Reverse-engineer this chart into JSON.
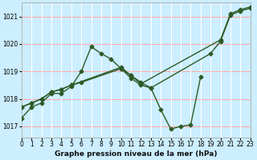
{
  "title": "Graphe pression niveau de la mer (hPa)",
  "bg_color": "#cceeff",
  "grid_color_h": "#ffaaaa",
  "grid_color_v": "#ffffff",
  "line_color": "#2d5a27",
  "series1_x": [
    0,
    1,
    2,
    3,
    4,
    5,
    6,
    7,
    8,
    9,
    10,
    11,
    12,
    13,
    14,
    15,
    16,
    17,
    18
  ],
  "series1_y": [
    1017.3,
    1017.7,
    1017.85,
    1018.2,
    1018.2,
    1018.45,
    1019.0,
    1019.9,
    1019.65,
    1019.45,
    1019.1,
    1018.75,
    1018.5,
    1018.4,
    1017.6,
    1016.9,
    1017.0,
    1017.05,
    1018.8
  ],
  "series2_x": [
    0,
    1,
    2,
    3,
    4,
    5,
    6,
    10,
    11,
    12,
    13,
    19,
    20,
    21,
    22,
    23
  ],
  "series2_y": [
    1017.7,
    1017.85,
    1018.0,
    1018.25,
    1018.35,
    1018.5,
    1018.6,
    1019.1,
    1018.85,
    1018.6,
    1018.4,
    1019.65,
    1020.1,
    1021.05,
    1021.2,
    1021.3
  ],
  "series3_x": [
    0,
    1,
    2,
    3,
    4,
    5,
    10,
    11,
    12,
    20,
    21,
    22,
    23
  ],
  "series3_y": [
    1017.7,
    1017.85,
    1018.0,
    1018.25,
    1018.35,
    1018.5,
    1019.15,
    1018.85,
    1018.55,
    1020.15,
    1021.1,
    1021.25,
    1021.35
  ],
  "xlim": [
    0,
    23
  ],
  "ylim": [
    1016.6,
    1021.5
  ],
  "yticks": [
    1017,
    1018,
    1019,
    1020,
    1021
  ],
  "ytick_labels": [
    "1017",
    "1018",
    "1019",
    "1020",
    "1021"
  ],
  "xticks": [
    0,
    1,
    2,
    3,
    4,
    5,
    6,
    7,
    8,
    9,
    10,
    11,
    12,
    13,
    14,
    15,
    16,
    17,
    18,
    19,
    20,
    21,
    22,
    23
  ],
  "marker": "D",
  "markersize": 2.5,
  "linewidth": 1.0,
  "xlabel_fontsize": 6.5,
  "tick_fontsize": 5.5
}
